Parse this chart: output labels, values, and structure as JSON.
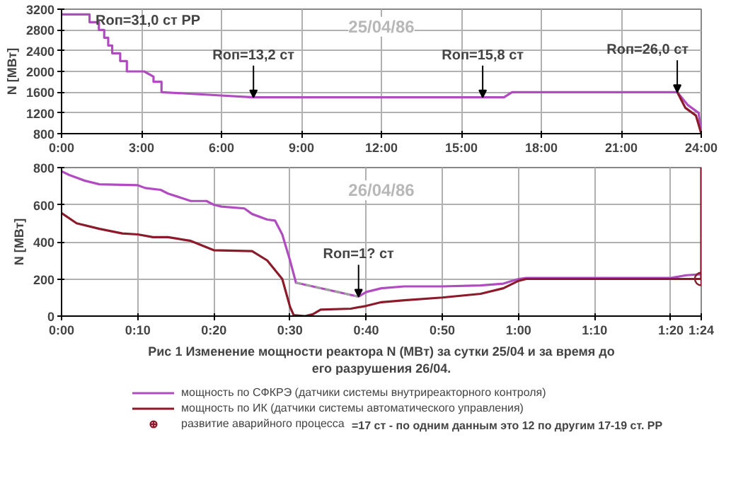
{
  "chart_data": [
    {
      "type": "line",
      "ylabel": "N [МВт]",
      "xlim": [
        0,
        24
      ],
      "xticks": [
        {
          "value": 0,
          "label": "0:00"
        },
        {
          "value": 3,
          "label": "3:00"
        },
        {
          "value": 6,
          "label": "6:00"
        },
        {
          "value": 9,
          "label": "9:00"
        },
        {
          "value": 12,
          "label": "12:00"
        },
        {
          "value": 15,
          "label": "15:00"
        },
        {
          "value": 18,
          "label": "18:00"
        },
        {
          "value": 21,
          "label": "21:00"
        },
        {
          "value": 24,
          "label": "24:00"
        }
      ],
      "ylim": [
        800,
        3200
      ],
      "yticks": [
        800,
        1200,
        1600,
        2000,
        2400,
        2800,
        3200
      ],
      "grid": true,
      "series": [
        {
          "color": "#b04cc0",
          "x": [
            0,
            1.05,
            1.05,
            1.4,
            1.4,
            1.6,
            1.6,
            1.75,
            1.75,
            1.9,
            1.9,
            2.2,
            2.2,
            2.45,
            2.45,
            3.1,
            3.45,
            3.45,
            3.75,
            3.75,
            5.5,
            7.2,
            16.6,
            16.9,
            23.1,
            23.5,
            23.9,
            24
          ],
          "values": [
            3100,
            3100,
            2950,
            2950,
            2800,
            2800,
            2650,
            2650,
            2500,
            2500,
            2350,
            2350,
            2200,
            2200,
            2000,
            2000,
            1900,
            1800,
            1800,
            1600,
            1550,
            1500,
            1500,
            1600,
            1600,
            1350,
            1200,
            800
          ]
        },
        {
          "color": "#8b1a2a",
          "x": [
            23.1,
            23.4,
            23.8,
            24
          ],
          "values": [
            1600,
            1300,
            1150,
            800
          ]
        }
      ],
      "annotations": [
        {
          "text": "Rоп=31,0 ст РР",
          "x": 0,
          "y": 3100
        },
        {
          "text": "Rоп=13,2 ст",
          "x": 7.2,
          "y": 1500
        },
        {
          "text": "Rоп=15,8 ст",
          "x": 15.8,
          "y": 1500
        },
        {
          "text": "Rоп=26,0 ст",
          "x": 23.1,
          "y": 1600
        },
        "25/04/86"
      ]
    },
    {
      "type": "line",
      "ylabel": "N [МВт]",
      "title": "Рис 1 Изменение мощности реактора N (МВт) за сутки 25/04 и за время до его разрушения 26/04.",
      "xlim": [
        0,
        1.4
      ],
      "xticks": [
        {
          "value": 0,
          "label": "0:00"
        },
        {
          "value": 0.1667,
          "label": "0:10"
        },
        {
          "value": 0.3333,
          "label": "0:20"
        },
        {
          "value": 0.5,
          "label": "0:30"
        },
        {
          "value": 0.6667,
          "label": "0:40"
        },
        {
          "value": 0.8333,
          "label": "0:50"
        },
        {
          "value": 1,
          "label": "1:00"
        },
        {
          "value": 1.1667,
          "label": "1:10"
        },
        {
          "value": 1.3333,
          "label": "1:20"
        },
        {
          "value": 1.4,
          "label": "1:24"
        }
      ],
      "ylim": [
        0,
        800
      ],
      "yticks": [
        0,
        200,
        400,
        600,
        800
      ],
      "grid": true,
      "legend": "bottom",
      "series": [
        {
          "name": "мощность по СФКРЭ (датчики системы внутриреакторного контроля)",
          "color": "#b04cc0",
          "x": [
            0,
            0.017,
            0.05,
            0.083,
            0.167,
            0.183,
            0.217,
            0.233,
            0.283,
            0.317,
            0.333,
            0.35,
            0.4,
            0.417,
            0.45,
            0.467,
            0.483,
            0.5,
            0.513,
            0.65,
            0.667,
            0.7,
            0.75,
            0.833,
            0.917,
            0.967,
            1,
            1.017,
            1.333,
            1.367,
            1.4
          ],
          "values": [
            780,
            760,
            730,
            710,
            705,
            690,
            680,
            660,
            620,
            620,
            600,
            590,
            580,
            550,
            520,
            515,
            440,
            300,
            180,
            105,
            130,
            150,
            160,
            160,
            165,
            175,
            200,
            205,
            205,
            220,
            225
          ]
        },
        {
          "color": "#a0a0a0",
          "line_style": "dashed",
          "x": [
            0.513,
            0.65
          ],
          "values": [
            180,
            105
          ]
        },
        {
          "name": "мощность по ИК (датчики системы автоматического управления)",
          "color": "#8b1a2a",
          "x": [
            0,
            0.033,
            0.083,
            0.133,
            0.167,
            0.2,
            0.233,
            0.283,
            0.333,
            0.417,
            0.45,
            0.483,
            0.5,
            0.508,
            0.533,
            0.55,
            0.567,
            0.633,
            0.667,
            0.7,
            0.75,
            0.833,
            0.917,
            0.967,
            1,
            1.017,
            1.4,
            1.4
          ],
          "values": [
            555,
            500,
            470,
            445,
            440,
            425,
            425,
            405,
            355,
            350,
            300,
            200,
            50,
            5,
            0,
            10,
            35,
            40,
            55,
            75,
            85,
            100,
            120,
            150,
            190,
            200,
            200,
            800
          ]
        },
        {
          "type": "scatter",
          "marker": "circle_cross",
          "name": "развитие аварийного процесса",
          "color": "#8b1a2a",
          "x": [
            1.4
          ],
          "values": [
            200
          ]
        }
      ],
      "annotations": [
        {
          "text": "Rоп=1? ст",
          "x": 0.65,
          "y": 105
        },
        "26/04/86",
        "=17 ст - по одним данным это 12 по другим 17-19 ст. РР"
      ]
    }
  ]
}
